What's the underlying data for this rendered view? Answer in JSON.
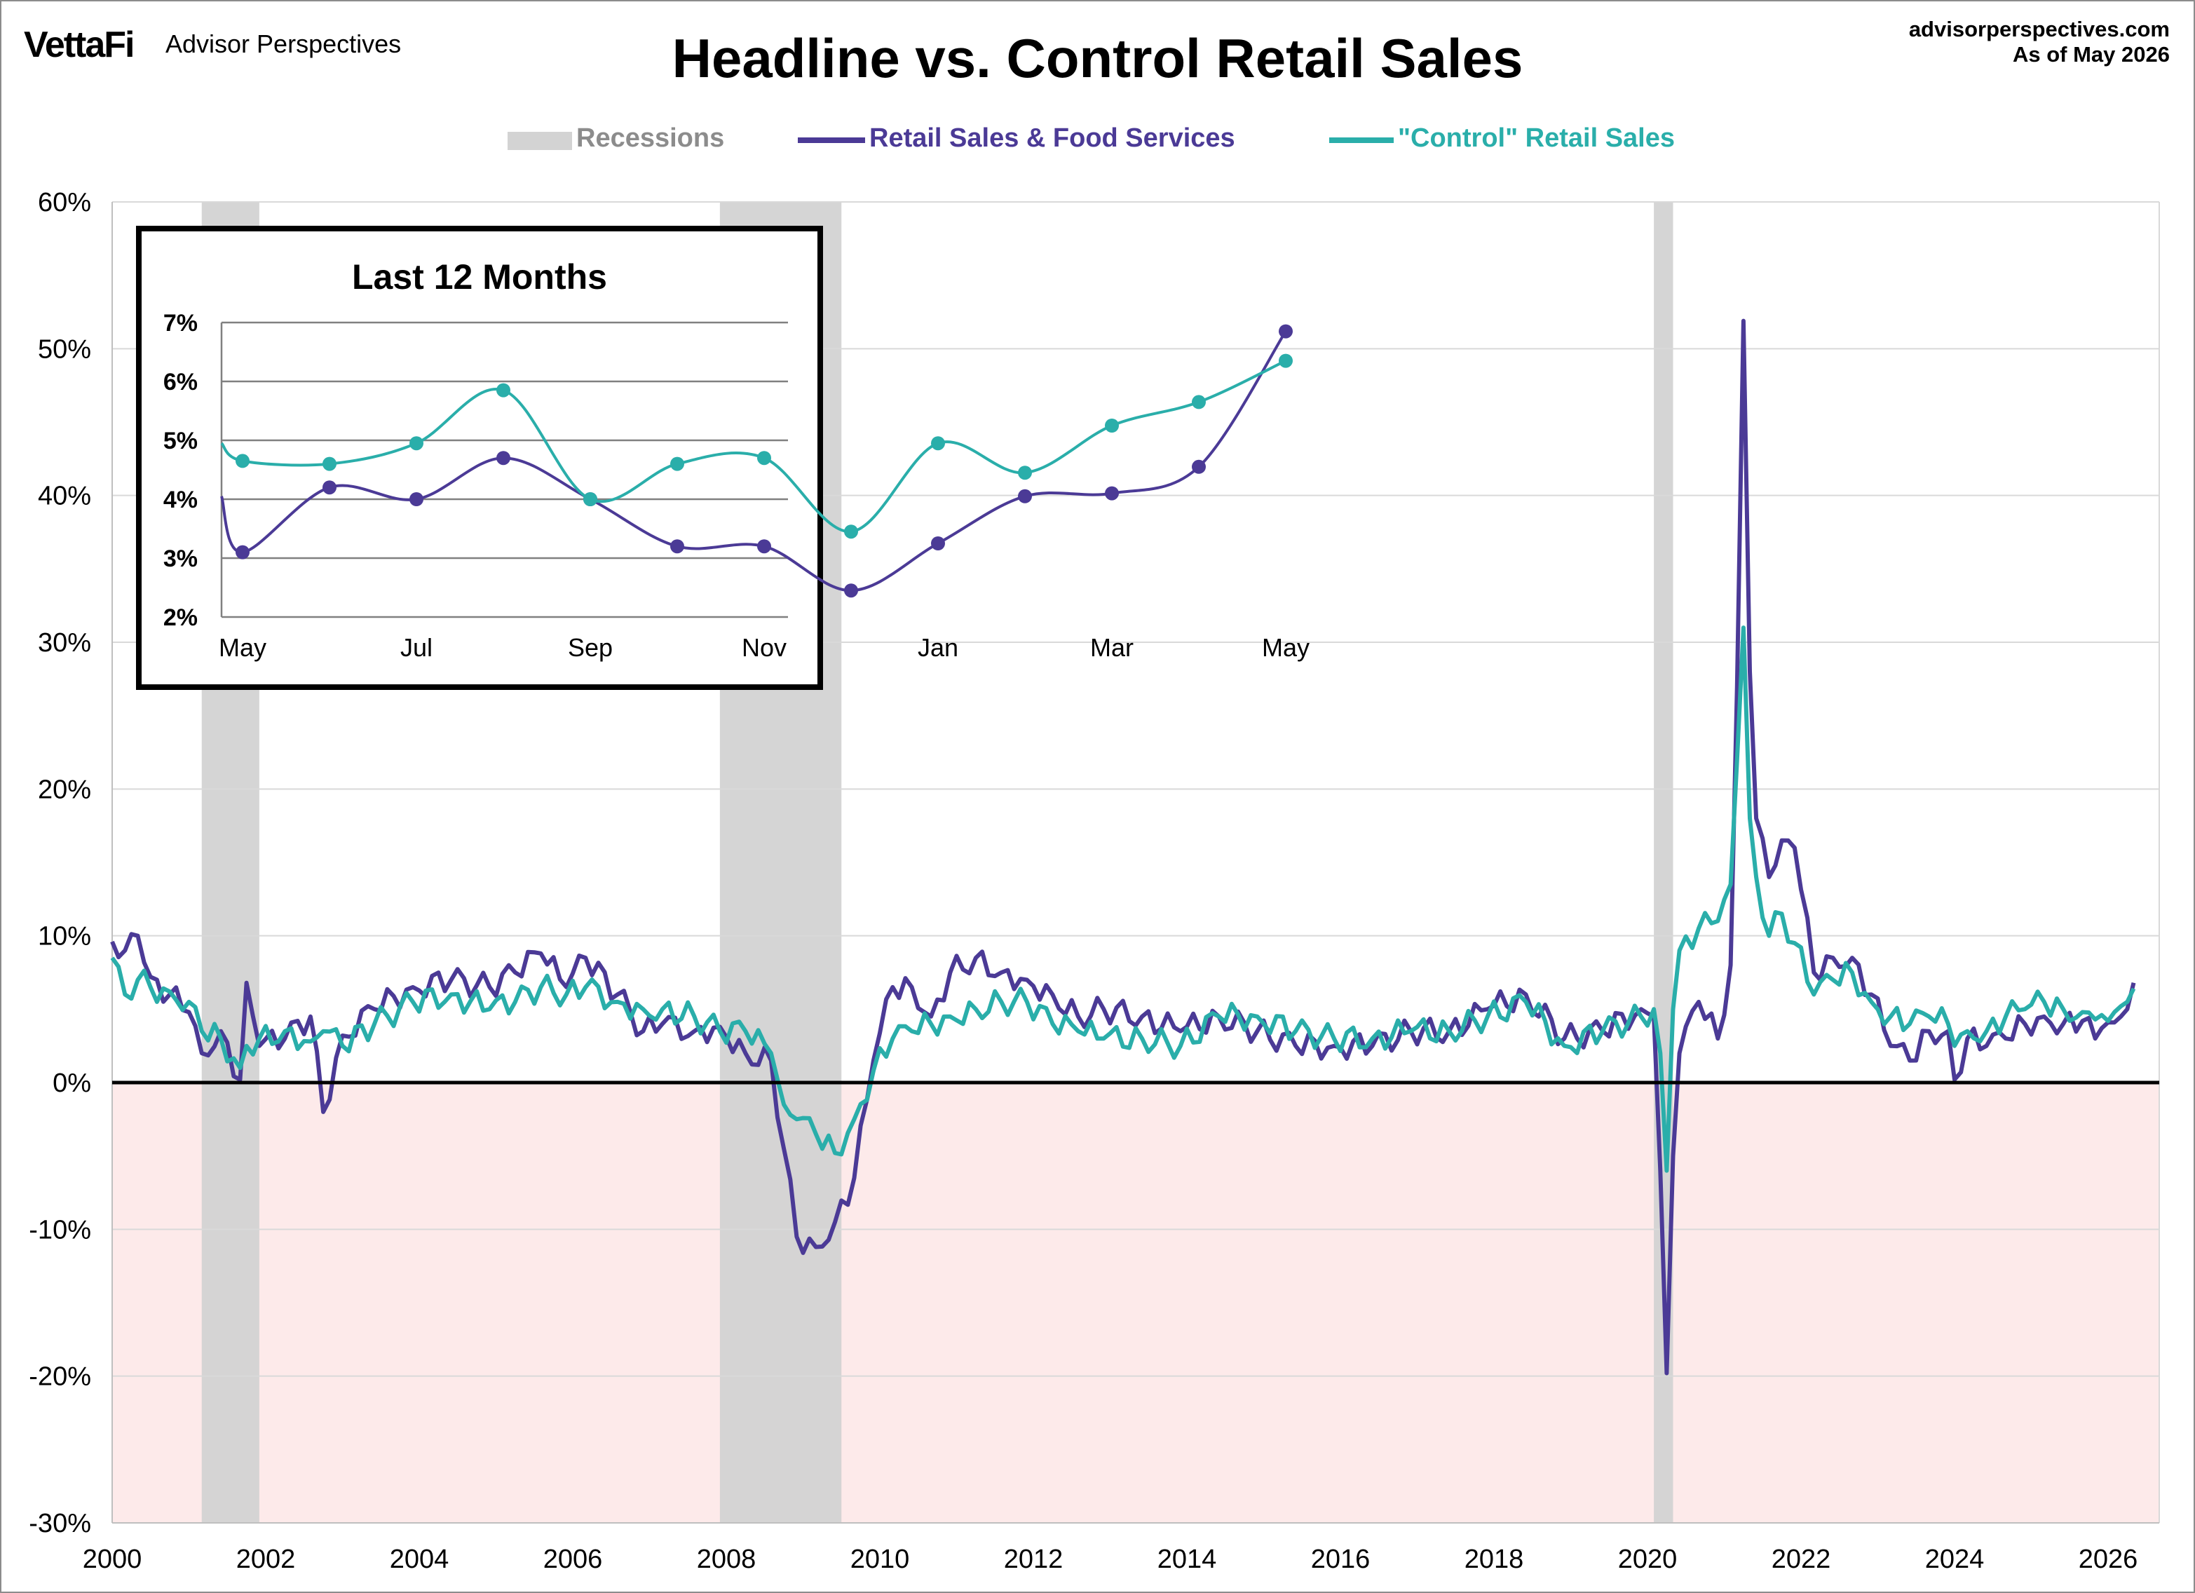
{
  "header": {
    "brand": "VettaFi",
    "brand_sub": "Advisor Perspectives",
    "site": "advisorperspectives.com",
    "as_of": "As of May 2026"
  },
  "colors": {
    "headline": "#4b3a96",
    "control": "#2aaeaa",
    "recession": "#d3d3d3",
    "negative_zone": "#fdeaea"
  },
  "legend": {
    "recessions": "Recessions",
    "headline": "Retail Sales & Food Services",
    "control": "\"Control\" Retail Sales"
  },
  "chart_data": [
    {
      "type": "line",
      "title": "Headline vs. Control Retail Sales",
      "x_range": [
        "2000-01",
        "2026-05"
      ],
      "ylim": [
        -30,
        60
      ],
      "y_unit": "%",
      "y_ticks": [
        "60%",
        "50%",
        "40%",
        "30%",
        "20%",
        "10%",
        "0%",
        "-10%",
        "-20%",
        "-30%"
      ],
      "x_ticks": [
        "2000",
        "2002",
        "2004",
        "2006",
        "2008",
        "2010",
        "2012",
        "2014",
        "2016",
        "2018",
        "2020",
        "2022",
        "2024",
        "2026"
      ],
      "grid": true,
      "legend_position": "top-center",
      "recessions": [
        {
          "start": "2001-03",
          "end": "2001-11"
        },
        {
          "start": "2007-12",
          "end": "2009-06"
        },
        {
          "start": "2020-02",
          "end": "2020-04"
        }
      ],
      "series": [
        {
          "name": "Retail Sales & Food Services",
          "points": [
            [
              "2000-01",
              9.6
            ],
            [
              "2000-03",
              9.0
            ],
            [
              "2000-05",
              10.0
            ],
            [
              "2000-07",
              7.2
            ],
            [
              "2000-10",
              6.0
            ],
            [
              "2001-01",
              4.8
            ],
            [
              "2001-03",
              2.0
            ],
            [
              "2001-06",
              3.5
            ],
            [
              "2001-09",
              0.2
            ],
            [
              "2001-10",
              6.8
            ],
            [
              "2001-12",
              2.5
            ],
            [
              "2002-04",
              3.0
            ],
            [
              "2002-08",
              4.5
            ],
            [
              "2002-10",
              -2.0
            ],
            [
              "2003-01",
              3.2
            ],
            [
              "2003-06",
              5.0
            ],
            [
              "2003-12",
              6.5
            ],
            [
              "2004-06",
              7.0
            ],
            [
              "2004-12",
              6.5
            ],
            [
              "2005-04",
              7.5
            ],
            [
              "2005-08",
              8.8
            ],
            [
              "2005-12",
              6.5
            ],
            [
              "2006-03",
              8.5
            ],
            [
              "2006-08",
              6.0
            ],
            [
              "2006-12",
              3.5
            ],
            [
              "2007-03",
              4.0
            ],
            [
              "2007-08",
              3.5
            ],
            [
              "2007-12",
              3.8
            ],
            [
              "2008-04",
              2.0
            ],
            [
              "2008-08",
              1.5
            ],
            [
              "2008-10",
              -4.5
            ],
            [
              "2008-12",
              -10.5
            ],
            [
              "2009-03",
              -11.2
            ],
            [
              "2009-06",
              -9.5
            ],
            [
              "2009-09",
              -6.5
            ],
            [
              "2009-12",
              1.5
            ],
            [
              "2010-03",
              6.5
            ],
            [
              "2010-06",
              6.5
            ],
            [
              "2010-09",
              4.5
            ],
            [
              "2010-12",
              7.5
            ],
            [
              "2011-04",
              8.5
            ],
            [
              "2011-08",
              7.5
            ],
            [
              "2011-12",
              7.0
            ],
            [
              "2012-04",
              6.0
            ],
            [
              "2012-08",
              4.5
            ],
            [
              "2012-12",
              5.0
            ],
            [
              "2013-06",
              4.5
            ],
            [
              "2013-12",
              3.5
            ],
            [
              "2014-06",
              4.5
            ],
            [
              "2014-12",
              3.5
            ],
            [
              "2015-06",
              2.5
            ],
            [
              "2015-12",
              2.5
            ],
            [
              "2016-06",
              2.5
            ],
            [
              "2016-12",
              3.5
            ],
            [
              "2017-06",
              3.5
            ],
            [
              "2017-12",
              5.0
            ],
            [
              "2018-06",
              6.0
            ],
            [
              "2018-12",
              3.0
            ],
            [
              "2019-06",
              3.5
            ],
            [
              "2019-12",
              5.0
            ],
            [
              "2020-02",
              4.5
            ],
            [
              "2020-03",
              -6.0
            ],
            [
              "2020-04",
              -19.8
            ],
            [
              "2020-05",
              -5.0
            ],
            [
              "2020-06",
              2.0
            ],
            [
              "2020-09",
              5.5
            ],
            [
              "2020-12",
              3.0
            ],
            [
              "2021-02",
              8.0
            ],
            [
              "2021-03",
              27.0
            ],
            [
              "2021-04",
              51.9
            ],
            [
              "2021-05",
              28.0
            ],
            [
              "2021-06",
              18.0
            ],
            [
              "2021-08",
              14.0
            ],
            [
              "2021-10",
              16.5
            ],
            [
              "2021-12",
              16.0
            ],
            [
              "2022-03",
              7.5
            ],
            [
              "2022-06",
              8.5
            ],
            [
              "2022-09",
              8.5
            ],
            [
              "2022-12",
              6.0
            ],
            [
              "2023-03",
              2.5
            ],
            [
              "2023-06",
              1.5
            ],
            [
              "2023-09",
              3.5
            ],
            [
              "2023-12",
              3.5
            ],
            [
              "2024-01",
              0.2
            ],
            [
              "2024-03",
              3.0
            ],
            [
              "2024-06",
              2.5
            ],
            [
              "2024-09",
              3.0
            ],
            [
              "2024-12",
              4.0
            ],
            [
              "2025-03",
              4.5
            ],
            [
              "2025-06",
              4.0
            ],
            [
              "2025-09",
              4.2
            ],
            [
              "2025-11",
              3.0
            ],
            [
              "2025-12",
              3.7
            ],
            [
              "2026-01",
              4.1
            ],
            [
              "2026-02",
              4.1
            ],
            [
              "2026-03",
              4.5
            ],
            [
              "2026-04",
              5.0
            ],
            [
              "2026-05",
              6.8
            ]
          ]
        },
        {
          "name": "\"Control\" Retail Sales",
          "points": [
            [
              "2000-01",
              8.5
            ],
            [
              "2000-03",
              6.0
            ],
            [
              "2000-05",
              7.0
            ],
            [
              "2000-07",
              6.5
            ],
            [
              "2000-10",
              6.2
            ],
            [
              "2001-01",
              5.5
            ],
            [
              "2001-03",
              3.5
            ],
            [
              "2001-06",
              3.0
            ],
            [
              "2001-09",
              1.0
            ],
            [
              "2001-10",
              2.5
            ],
            [
              "2001-12",
              3.0
            ],
            [
              "2002-04",
              3.5
            ],
            [
              "2002-08",
              2.8
            ],
            [
              "2002-10",
              3.5
            ],
            [
              "2003-01",
              2.5
            ],
            [
              "2003-06",
              4.0
            ],
            [
              "2003-12",
              5.5
            ],
            [
              "2004-06",
              6.0
            ],
            [
              "2004-12",
              5.0
            ],
            [
              "2005-04",
              5.5
            ],
            [
              "2005-08",
              6.5
            ],
            [
              "2005-12",
              6.0
            ],
            [
              "2006-03",
              6.5
            ],
            [
              "2006-08",
              5.5
            ],
            [
              "2006-12",
              5.0
            ],
            [
              "2007-03",
              5.0
            ],
            [
              "2007-08",
              4.5
            ],
            [
              "2007-12",
              3.5
            ],
            [
              "2008-04",
              3.5
            ],
            [
              "2008-08",
              2.0
            ],
            [
              "2008-10",
              -1.5
            ],
            [
              "2008-12",
              -2.5
            ],
            [
              "2009-03",
              -3.5
            ],
            [
              "2009-06",
              -4.8
            ],
            [
              "2009-09",
              -2.5
            ],
            [
              "2009-12",
              0.8
            ],
            [
              "2010-03",
              3.0
            ],
            [
              "2010-06",
              3.5
            ],
            [
              "2010-09",
              4.0
            ],
            [
              "2010-12",
              4.5
            ],
            [
              "2011-04",
              5.0
            ],
            [
              "2011-08",
              5.5
            ],
            [
              "2011-12",
              5.5
            ],
            [
              "2012-04",
              4.0
            ],
            [
              "2012-08",
              3.5
            ],
            [
              "2012-12",
              3.0
            ],
            [
              "2013-06",
              3.0
            ],
            [
              "2013-12",
              2.5
            ],
            [
              "2014-06",
              4.5
            ],
            [
              "2014-12",
              4.5
            ],
            [
              "2015-06",
              3.5
            ],
            [
              "2015-12",
              3.0
            ],
            [
              "2016-06",
              3.0
            ],
            [
              "2016-12",
              3.5
            ],
            [
              "2017-06",
              3.5
            ],
            [
              "2017-12",
              4.5
            ],
            [
              "2018-06",
              5.5
            ],
            [
              "2018-12",
              2.5
            ],
            [
              "2019-06",
              3.5
            ],
            [
              "2019-12",
              4.5
            ],
            [
              "2020-02",
              5.0
            ],
            [
              "2020-03",
              2.0
            ],
            [
              "2020-04",
              -6.0
            ],
            [
              "2020-05",
              5.0
            ],
            [
              "2020-06",
              9.0
            ],
            [
              "2020-09",
              10.5
            ],
            [
              "2020-12",
              11.0
            ],
            [
              "2021-02",
              13.5
            ],
            [
              "2021-03",
              22.0
            ],
            [
              "2021-04",
              31.0
            ],
            [
              "2021-05",
              18.0
            ],
            [
              "2021-06",
              14.0
            ],
            [
              "2021-08",
              10.0
            ],
            [
              "2021-10",
              11.5
            ],
            [
              "2021-12",
              9.5
            ],
            [
              "2022-03",
              6.0
            ],
            [
              "2022-06",
              7.0
            ],
            [
              "2022-09",
              7.5
            ],
            [
              "2022-12",
              5.5
            ],
            [
              "2023-03",
              4.5
            ],
            [
              "2023-06",
              4.0
            ],
            [
              "2023-09",
              4.5
            ],
            [
              "2023-12",
              4.0
            ],
            [
              "2024-01",
              2.5
            ],
            [
              "2024-03",
              3.5
            ],
            [
              "2024-06",
              3.5
            ],
            [
              "2024-09",
              4.5
            ],
            [
              "2024-12",
              5.0
            ],
            [
              "2025-03",
              5.5
            ],
            [
              "2025-06",
              5.0
            ],
            [
              "2025-09",
              4.8
            ],
            [
              "2025-11",
              4.3
            ],
            [
              "2025-12",
              4.6
            ],
            [
              "2026-01",
              4.2
            ],
            [
              "2026-02",
              4.8
            ],
            [
              "2026-03",
              5.2
            ],
            [
              "2026-04",
              5.5
            ],
            [
              "2026-05",
              6.4
            ]
          ]
        }
      ]
    },
    {
      "type": "line",
      "title": "Last 12 Months",
      "ylim": [
        2,
        7
      ],
      "y_ticks": [
        "7%",
        "6%",
        "5%",
        "4%",
        "3%",
        "2%"
      ],
      "x_ticks": [
        "May",
        "Jul",
        "Sep",
        "Nov",
        "Jan",
        "Mar",
        "May"
      ],
      "categories": [
        "May",
        "Jun",
        "Jul",
        "Aug",
        "Sep",
        "Oct",
        "Nov",
        "Dec",
        "Jan",
        "Feb",
        "Mar",
        "Apr",
        "May"
      ],
      "series": [
        {
          "name": "Retail Sales & Food Services",
          "start_value": 4.05,
          "values": [
            3.1,
            4.2,
            4.0,
            4.7,
            4.0,
            3.2,
            3.2,
            2.45,
            3.25,
            4.05,
            4.1,
            4.55,
            6.85
          ]
        },
        {
          "name": "\"Control\" Retail Sales",
          "start_value": 4.95,
          "values": [
            4.65,
            4.6,
            4.95,
            5.85,
            4.0,
            4.6,
            4.7,
            3.45,
            4.95,
            4.45,
            5.25,
            5.65,
            6.35
          ]
        }
      ]
    }
  ]
}
